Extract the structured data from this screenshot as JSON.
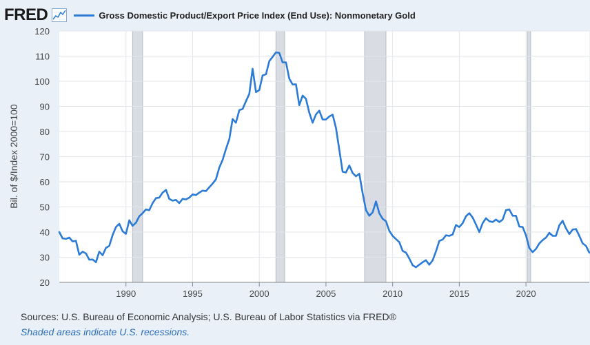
{
  "header": {
    "logo_text": "FRED",
    "series_title": "Gross Domestic Product/Export Price Index (End Use): Nonmonetary Gold"
  },
  "colors": {
    "line": "#2b7bd6",
    "recession": "#d9dde3",
    "grid": "#e2e6ea",
    "plot_bg": "#ffffff",
    "page_bg": "#e9f0f8"
  },
  "footer": {
    "sources": "Sources: U.S. Bureau of Economic Analysis; U.S. Bureau of Labor Statistics via FRED®",
    "recession_note": "Shaded areas indicate U.S. recessions."
  },
  "chart_data": {
    "type": "line",
    "title": "Gross Domestic Product/Export Price Index (End Use): Nonmonetary Gold",
    "xlabel": "",
    "ylabel": "Bil. of $/Index 2000=100",
    "ylim": [
      20,
      120
    ],
    "xlim": [
      1985.0,
      2024.75
    ],
    "grid": true,
    "yticks": [
      20,
      30,
      40,
      50,
      60,
      70,
      80,
      90,
      100,
      110,
      120
    ],
    "xticks": [
      1990,
      1995,
      2000,
      2005,
      2010,
      2015,
      2020
    ],
    "recessions": [
      [
        1990.5,
        1991.25
      ],
      [
        2001.25,
        2001.9
      ],
      [
        2007.9,
        2009.5
      ],
      [
        2020.1,
        2020.35
      ]
    ],
    "series": [
      {
        "name": "Gross Domestic Product/Export Price Index (End Use): Nonmonetary Gold",
        "x": [
          1985.0,
          1985.25,
          1985.5,
          1985.75,
          1986.0,
          1986.25,
          1986.5,
          1986.75,
          1987.0,
          1987.25,
          1987.5,
          1987.75,
          1988.0,
          1988.25,
          1988.5,
          1988.75,
          1989.0,
          1989.25,
          1989.5,
          1989.75,
          1990.0,
          1990.25,
          1990.5,
          1990.75,
          1991.0,
          1991.25,
          1991.5,
          1991.75,
          1992.0,
          1992.25,
          1992.5,
          1992.75,
          1993.0,
          1993.25,
          1993.5,
          1993.75,
          1994.0,
          1994.25,
          1994.5,
          1994.75,
          1995.0,
          1995.25,
          1995.5,
          1995.75,
          1996.0,
          1996.25,
          1996.5,
          1996.75,
          1997.0,
          1997.25,
          1997.5,
          1997.75,
          1998.0,
          1998.25,
          1998.5,
          1998.75,
          1999.0,
          1999.25,
          1999.5,
          1999.75,
          2000.0,
          2000.25,
          2000.5,
          2000.75,
          2001.0,
          2001.25,
          2001.5,
          2001.75,
          2002.0,
          2002.25,
          2002.5,
          2002.75,
          2003.0,
          2003.25,
          2003.5,
          2003.75,
          2004.0,
          2004.25,
          2004.5,
          2004.75,
          2005.0,
          2005.25,
          2005.5,
          2005.75,
          2006.0,
          2006.25,
          2006.5,
          2006.75,
          2007.0,
          2007.25,
          2007.5,
          2007.75,
          2008.0,
          2008.25,
          2008.5,
          2008.75,
          2009.0,
          2009.25,
          2009.5,
          2009.75,
          2010.0,
          2010.25,
          2010.5,
          2010.75,
          2011.0,
          2011.25,
          2011.5,
          2011.75,
          2012.0,
          2012.25,
          2012.5,
          2012.75,
          2013.0,
          2013.25,
          2013.5,
          2013.75,
          2014.0,
          2014.25,
          2014.5,
          2014.75,
          2015.0,
          2015.25,
          2015.5,
          2015.75,
          2016.0,
          2016.25,
          2016.5,
          2016.75,
          2017.0,
          2017.25,
          2017.5,
          2017.75,
          2018.0,
          2018.25,
          2018.5,
          2018.75,
          2019.0,
          2019.25,
          2019.5,
          2019.75,
          2020.0,
          2020.25,
          2020.5,
          2020.75,
          2021.0,
          2021.25,
          2021.5,
          2021.75,
          2022.0,
          2022.25,
          2022.5,
          2022.75,
          2023.0,
          2023.25,
          2023.5,
          2023.75,
          2024.0,
          2024.25,
          2024.5,
          2024.75
        ],
        "values": [
          40.0,
          37.5,
          37.3,
          37.8,
          36.3,
          36.5,
          31.0,
          32.2,
          31.5,
          29.0,
          29.1,
          28.0,
          32.2,
          30.8,
          33.7,
          34.5,
          38.8,
          42.0,
          43.3,
          40.3,
          39.3,
          44.7,
          42.5,
          43.7,
          46.3,
          47.5,
          49.0,
          48.7,
          51.5,
          53.5,
          53.7,
          55.7,
          56.8,
          53.2,
          52.5,
          52.8,
          51.5,
          53.2,
          53.0,
          53.7,
          55.0,
          54.7,
          55.7,
          56.5,
          56.3,
          57.8,
          59.3,
          61.0,
          65.7,
          68.7,
          73.0,
          77.0,
          85.0,
          83.5,
          88.5,
          89.0,
          92.0,
          95.0,
          105.0,
          95.7,
          96.5,
          102.3,
          102.8,
          108.0,
          109.7,
          111.5,
          111.3,
          107.5,
          107.5,
          101.0,
          98.7,
          98.8,
          90.5,
          94.3,
          93.0,
          87.5,
          83.5,
          86.8,
          88.3,
          84.8,
          84.8,
          86.0,
          86.7,
          81.5,
          72.7,
          64.0,
          63.7,
          66.5,
          63.5,
          62.2,
          63.2,
          55.5,
          48.7,
          46.5,
          47.8,
          52.2,
          47.5,
          45.3,
          44.3,
          40.5,
          38.5,
          37.2,
          36.0,
          32.5,
          31.8,
          29.5,
          26.8,
          26.0,
          27.0,
          28.0,
          28.8,
          27.0,
          28.7,
          32.3,
          36.5,
          37.0,
          38.7,
          38.5,
          39.0,
          42.8,
          42.0,
          43.5,
          46.3,
          47.5,
          45.8,
          43.0,
          40.0,
          43.5,
          45.5,
          44.3,
          44.0,
          45.0,
          44.0,
          45.0,
          48.7,
          49.0,
          46.5,
          46.5,
          42.2,
          42.0,
          38.7,
          33.7,
          32.0,
          33.3,
          35.5,
          36.8,
          37.8,
          39.7,
          38.5,
          38.5,
          42.7,
          44.5,
          41.5,
          39.2,
          41.0,
          41.2,
          38.5,
          35.5,
          34.5,
          31.8
        ]
      }
    ]
  }
}
